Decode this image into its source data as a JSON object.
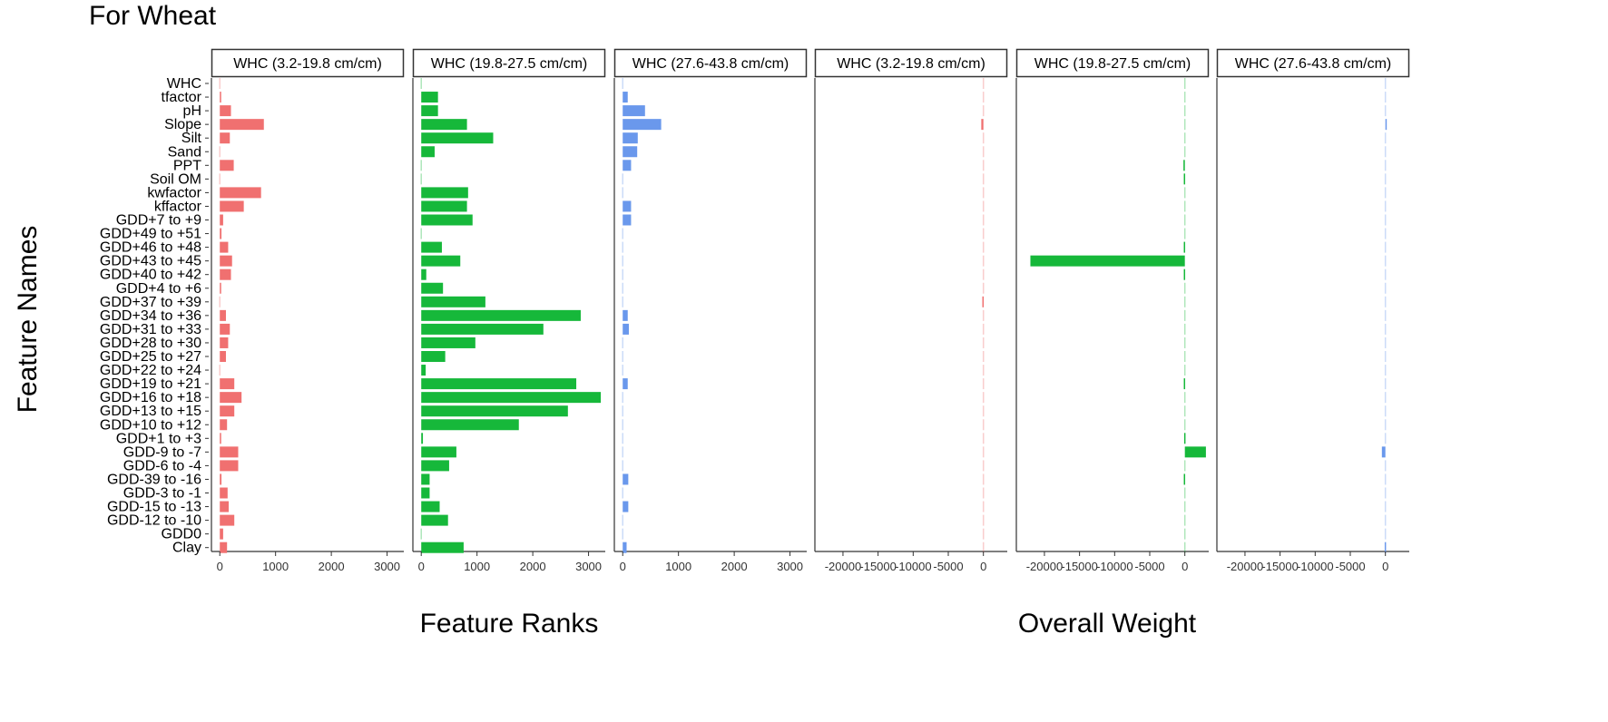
{
  "title": "For Wheat",
  "ylabel": "Feature Names",
  "group_labels": {
    "ranks": "Feature Ranks",
    "weights": "Overall Weight"
  },
  "chart_data": {
    "type": "bar",
    "orientation": "horizontal",
    "title": "For Wheat",
    "ylabel": "Feature Names",
    "categories": [
      "WHC",
      "tfactor",
      "pH",
      "Slope",
      "Silt",
      "Sand",
      "PPT",
      "Soil OM",
      "kwfactor",
      "kffactor",
      "GDD+7 to +9",
      "GDD+49 to +51",
      "GDD+46 to +48",
      "GDD+43 to +45",
      "GDD+40 to +42",
      "GDD+4 to +6",
      "GDD+37 to +39",
      "GDD+34 to +36",
      "GDD+31 to +33",
      "GDD+28 to +30",
      "GDD+25 to +27",
      "GDD+22 to +24",
      "GDD+19 to +21",
      "GDD+16 to +18",
      "GDD+13 to +15",
      "GDD+10 to +12",
      "GDD+1 to +3",
      "GDD-9 to -7",
      "GDD-6 to -4",
      "GDD-39 to -16",
      "GDD-3 to -1",
      "GDD-15 to -13",
      "GDD-12 to -10",
      "GDD0",
      "Clay"
    ],
    "colors": [
      "#f07070",
      "#16b83a",
      "#6a98ec"
    ],
    "grid": false,
    "legend": "none",
    "panels": [
      {
        "group": "Feature Ranks",
        "strip": "WHC (3.2-19.8 cm/cm)",
        "xlim": [
          -150,
          3300
        ],
        "xticks": [
          0,
          1000,
          2000,
          3000
        ],
        "color": "#f07070",
        "values": [
          0,
          20,
          200,
          790,
          180,
          0,
          250,
          0,
          740,
          430,
          60,
          30,
          150,
          220,
          200,
          20,
          0,
          110,
          180,
          150,
          110,
          0,
          260,
          390,
          260,
          130,
          20,
          330,
          330,
          30,
          140,
          160,
          260,
          60,
          130
        ]
      },
      {
        "group": "Feature Ranks",
        "strip": "WHC (19.8-27.5 cm/cm)",
        "xlim": [
          -150,
          3300
        ],
        "xticks": [
          0,
          1000,
          2000,
          3000
        ],
        "color": "#16b83a",
        "values": [
          0,
          300,
          300,
          820,
          1290,
          240,
          0,
          0,
          840,
          820,
          920,
          0,
          370,
          700,
          90,
          390,
          1150,
          2860,
          2190,
          970,
          430,
          80,
          2780,
          3220,
          2630,
          1750,
          30,
          630,
          500,
          150,
          150,
          330,
          480,
          0,
          760
        ]
      },
      {
        "group": "Feature Ranks",
        "strip": "WHC (27.6-43.8 cm/cm)",
        "xlim": [
          -150,
          3300
        ],
        "xticks": [
          0,
          1000,
          2000,
          3000
        ],
        "color": "#6a98ec",
        "values": [
          0,
          90,
          400,
          690,
          270,
          260,
          150,
          0,
          0,
          150,
          150,
          0,
          0,
          0,
          0,
          0,
          0,
          90,
          110,
          0,
          0,
          0,
          90,
          0,
          0,
          0,
          0,
          0,
          0,
          100,
          0,
          100,
          0,
          0,
          70
        ]
      },
      {
        "group": "Overall Weight",
        "strip": "WHC (3.2-19.8 cm/cm)",
        "xlim": [
          -24000,
          3400
        ],
        "xticks": [
          -20000,
          -15000,
          -10000,
          -5000,
          0
        ],
        "xticklabels": [
          "-20000",
          "-15000",
          "-10000",
          "-5000",
          "0"
        ],
        "color": "#f07070",
        "values": [
          0,
          0,
          0,
          -300,
          0,
          0,
          0,
          0,
          0,
          0,
          0,
          0,
          0,
          0,
          0,
          0,
          -150,
          0,
          0,
          0,
          0,
          0,
          0,
          0,
          0,
          0,
          0,
          0,
          0,
          0,
          0,
          0,
          0,
          0,
          0
        ]
      },
      {
        "group": "Overall Weight",
        "strip": "WHC (19.8-27.5 cm/cm)",
        "xlim": [
          -24000,
          3400
        ],
        "xticks": [
          -20000,
          -15000,
          -10000,
          -5000,
          0
        ],
        "xticklabels": [
          "-20000",
          "-15000",
          "-10000",
          "-5000",
          "0"
        ],
        "color": "#16b83a",
        "values": [
          0,
          0,
          0,
          0,
          0,
          0,
          -200,
          -150,
          0,
          0,
          0,
          0,
          -150,
          -22000,
          -150,
          0,
          0,
          0,
          0,
          0,
          0,
          0,
          -150,
          0,
          0,
          0,
          -100,
          3000,
          0,
          -150,
          0,
          0,
          0,
          0,
          0
        ]
      },
      {
        "group": "Overall Weight",
        "strip": "WHC (27.6-43.8 cm/cm)",
        "xlim": [
          -24000,
          3400
        ],
        "xticks": [
          -20000,
          -15000,
          -10000,
          -5000,
          0
        ],
        "xticklabels": [
          "-20000",
          "-15000",
          "-10000",
          "-5000",
          "0"
        ],
        "color": "#6a98ec",
        "values": [
          0,
          0,
          0,
          150,
          0,
          0,
          0,
          0,
          0,
          0,
          0,
          0,
          0,
          0,
          0,
          0,
          0,
          0,
          0,
          0,
          0,
          0,
          0,
          0,
          0,
          0,
          0,
          -500,
          0,
          0,
          0,
          0,
          0,
          0,
          -100
        ]
      }
    ]
  }
}
